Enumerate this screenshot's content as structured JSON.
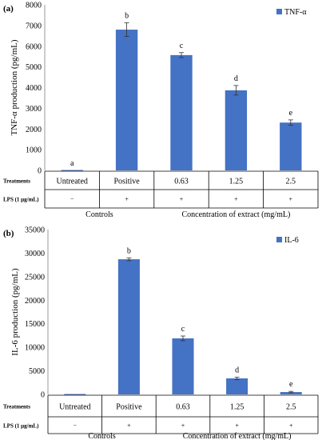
{
  "colors": {
    "bar": "#4472C4",
    "axis": "#7f7f7f",
    "grid": "#000000",
    "text": "#000000"
  },
  "table_labels": {
    "treatments": "Treatments",
    "lps": "LPS (1 μg/mL)"
  },
  "treatments": [
    "Untreated",
    "Positive",
    "0.63",
    "1.25",
    "2.5"
  ],
  "lps": [
    "−",
    "+",
    "+",
    "+",
    "+"
  ],
  "groups": {
    "controls": "Controls",
    "extract": "Concentration of extract (mg/mL)"
  },
  "chart_data": [
    {
      "panel": "(a)",
      "type": "bar",
      "ylabel": "TNF-α production (pg/mL)",
      "ylim": [
        0,
        8000
      ],
      "yticks": [
        0,
        1000,
        2000,
        3000,
        4000,
        5000,
        6000,
        7000,
        8000
      ],
      "categories": [
        "Untreated",
        "Positive",
        "0.63",
        "1.25",
        "2.5"
      ],
      "series": [
        {
          "name": "TNF-α",
          "values": [
            0,
            6800,
            5570,
            3870,
            2310
          ],
          "errors": [
            0,
            330,
            120,
            230,
            130
          ]
        }
      ],
      "letters": [
        "a",
        "b",
        "c",
        "d",
        "e"
      ],
      "legend": "top-right",
      "grid": false
    },
    {
      "panel": "(b)",
      "type": "bar",
      "ylabel": "IL-6 production (pg/mL)",
      "ylim": [
        0,
        35000
      ],
      "yticks": [
        0,
        5000,
        10000,
        15000,
        20000,
        25000,
        30000,
        35000
      ],
      "categories": [
        "Untreated",
        "Positive",
        "0.63",
        "1.25",
        "2.5"
      ],
      "series": [
        {
          "name": "IL-6",
          "values": [
            0,
            28700,
            11900,
            3400,
            500
          ],
          "errors": [
            0,
            300,
            500,
            250,
            150
          ]
        }
      ],
      "letters": [
        "",
        "b",
        "c",
        "d",
        "e"
      ],
      "legend": "top-right",
      "grid": false
    }
  ]
}
